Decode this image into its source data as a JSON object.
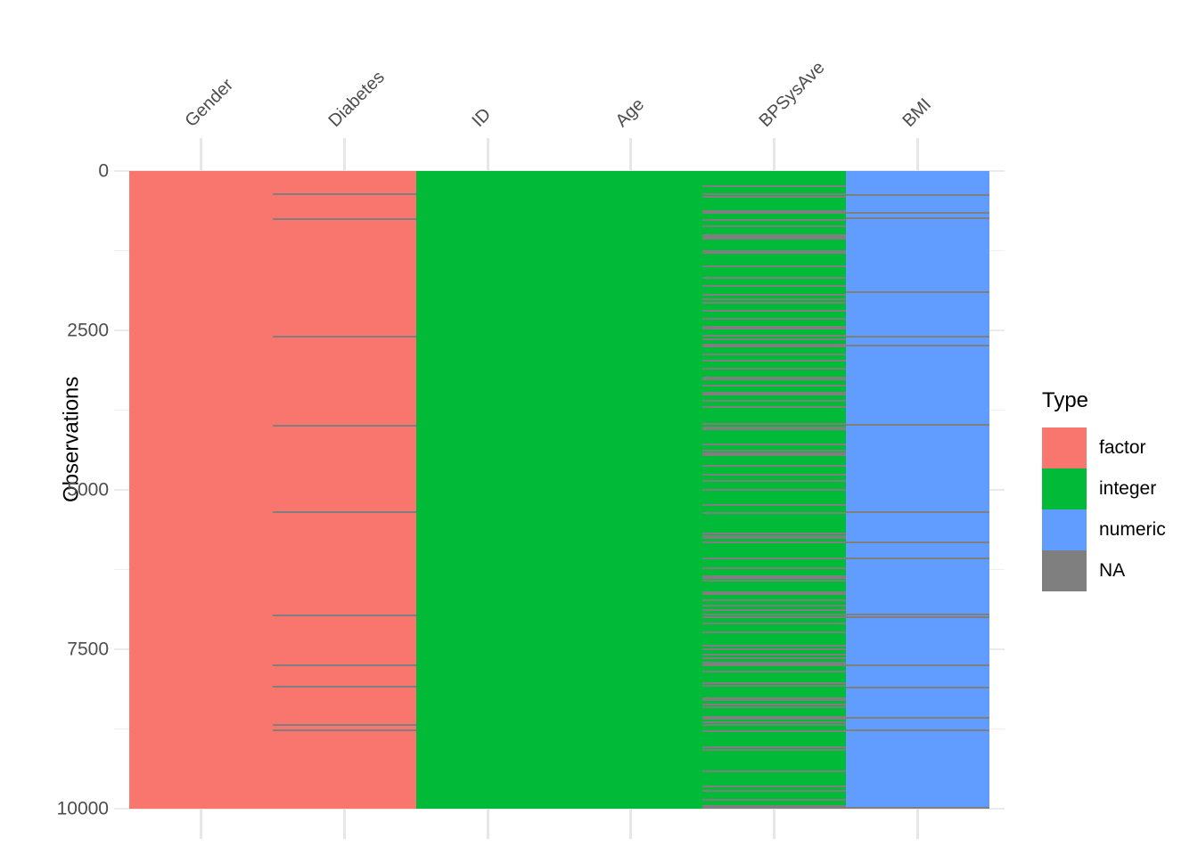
{
  "chart_data": {
    "type": "heatmap",
    "title": "",
    "xlabel": "",
    "ylabel": "Observations",
    "x_axis_position": "top",
    "grid": true,
    "n_observations": 10000,
    "ylim": [
      10000,
      0
    ],
    "y_ticks": [
      0,
      2500,
      5000,
      7500,
      10000
    ],
    "y_tick_labels": [
      "0",
      "2500",
      "5000",
      "7500",
      "10000"
    ],
    "y_minor_ticks": [
      1250,
      3750,
      6250,
      8750
    ],
    "columns": [
      {
        "name": "Gender",
        "type": "factor",
        "na_rows": [],
        "na_rows_bold": []
      },
      {
        "name": "Diabetes",
        "type": "factor",
        "na_rows": [
          369,
          757,
          2597,
          3994,
          5348,
          6973,
          7758,
          8090,
          8688,
          8772
        ],
        "na_rows_bold": []
      },
      {
        "name": "ID",
        "type": "integer",
        "na_rows": [],
        "na_rows_bold": []
      },
      {
        "name": "Age",
        "type": "integer",
        "na_rows": [],
        "na_rows_bold": []
      },
      {
        "name": "BPSysAve",
        "type": "integer",
        "na_rows": [
          238,
          369,
          401,
          625,
          653,
          771,
          869,
          999,
          1032,
          1065,
          1490,
          1672,
          1808,
          1943,
          2018,
          2074,
          2191,
          2321,
          2583,
          2635,
          2881,
          2979,
          3101,
          3237,
          3269,
          3363,
          3475,
          3507,
          3605,
          3699,
          3970,
          4288,
          4390,
          4422,
          4460,
          4624,
          4764,
          4857,
          4997,
          5231,
          5361,
          5689,
          5721,
          5753,
          5819,
          6071,
          6225,
          6352,
          6384,
          6426,
          6726,
          6818,
          6888,
          6958,
          6992,
          7098,
          7238,
          7449,
          7496,
          7589,
          7636,
          7706,
          7729,
          7752,
          7846,
          8033,
          8079,
          8359,
          8407,
          8640,
          8687,
          8780,
          9037,
          9084,
          9410,
          9644,
          9714,
          9854
        ],
        "na_rows_bold": [
          1266,
          2453,
          2737,
          4040,
          6622,
          8289,
          8569,
          9966
        ]
      },
      {
        "name": "BMI",
        "type": "numeric",
        "na_rows": [
          373,
          653,
          737,
          1906,
          2593,
          2733,
          3980,
          5348,
          5830,
          6072,
          6960,
          6993,
          7754,
          8104,
          8571,
          8772,
          9986
        ],
        "na_rows_bold": []
      }
    ],
    "legend": {
      "title": "Type",
      "position": "right",
      "entries": [
        {
          "label": "factor",
          "color": "#F8766D"
        },
        {
          "label": "integer",
          "color": "#00BA38"
        },
        {
          "label": "numeric",
          "color": "#619CFF"
        },
        {
          "label": "NA",
          "color": "#7F7F7F"
        }
      ]
    },
    "colors": {
      "background": "#FFFFFF",
      "grid_major": "#EBEBEB",
      "grid_minor": "#EFEFEF",
      "axis_text": "#4D4D4D",
      "axis_title": "#000000",
      "na_line": "#7F7F7F"
    }
  }
}
